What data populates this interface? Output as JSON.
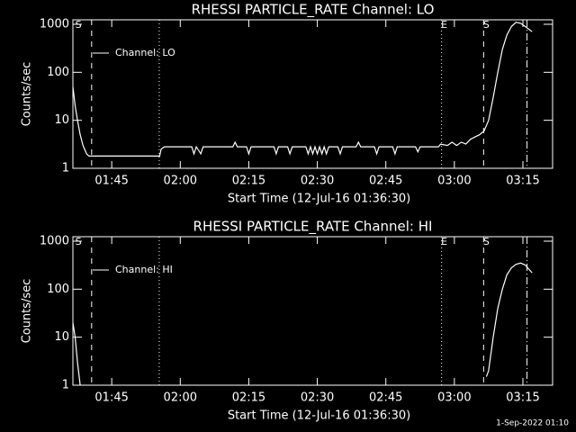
{
  "chart_data": [
    {
      "type": "line",
      "title": "RHESSI PARTICLE_RATE Channel: LO",
      "xlabel": "Start Time (12-Jul-16 01:36:30)",
      "ylabel": "Counts/sec",
      "log_y": true,
      "ylim": [
        1,
        1240
      ],
      "yticks": [
        1,
        10,
        100,
        1000
      ],
      "xlim": [
        0,
        105
      ],
      "xticks": [
        {
          "value": 8.5,
          "label": "01:45"
        },
        {
          "value": 23.5,
          "label": "02:00"
        },
        {
          "value": 38.5,
          "label": "02:15"
        },
        {
          "value": 53.5,
          "label": "02:30"
        },
        {
          "value": 68.5,
          "label": "02:45"
        },
        {
          "value": 83.5,
          "label": "03:00"
        },
        {
          "value": 98.5,
          "label": "03:15"
        }
      ],
      "legend": "upper left",
      "markers": [
        {
          "x": 4.1,
          "style": "dashed"
        },
        {
          "x": 18.9,
          "style": "dotted"
        },
        {
          "x": 80.7,
          "style": "dotted",
          "label": "E"
        },
        {
          "x": 89.9,
          "style": "dashed",
          "label": "S"
        },
        {
          "x": 99.4,
          "style": "dashdot"
        }
      ],
      "annotations": [
        {
          "x": 0.8,
          "text": "S"
        }
      ],
      "series": [
        {
          "name": "Channel: LO",
          "color": "#ffffff",
          "x": [
            0,
            0.5,
            1,
            1.6,
            2.2,
            3,
            3.5,
            19,
            19.3,
            20,
            26,
            26.5,
            27,
            28,
            28.5,
            35,
            35.5,
            36,
            38,
            38.5,
            39,
            44,
            44.5,
            45,
            47,
            47.5,
            48,
            51,
            51.5,
            52,
            52.5,
            53,
            53.5,
            54,
            54.5,
            55,
            55.5,
            56,
            58,
            58.5,
            59,
            62,
            62.5,
            63,
            66,
            66.5,
            67,
            70,
            70.5,
            71,
            75,
            75.5,
            76,
            80,
            80.5,
            82,
            83,
            84,
            85,
            86,
            87,
            88,
            89,
            90,
            91,
            92,
            93,
            94,
            95,
            96,
            97,
            98,
            99,
            100.5
          ],
          "values": [
            50,
            20,
            10,
            5,
            3,
            2,
            1.8,
            1.8,
            2.5,
            2.8,
            2.8,
            2,
            2.8,
            2,
            2.8,
            2.8,
            3.5,
            2.8,
            2.8,
            2,
            2.8,
            2.8,
            2,
            2.8,
            2.8,
            2,
            2.8,
            2.8,
            2,
            2.8,
            2,
            2.8,
            2,
            2.8,
            2,
            2.8,
            2,
            2.8,
            2.8,
            2,
            2.8,
            2.8,
            3.5,
            2.8,
            2.8,
            2,
            2.8,
            2.8,
            2,
            2.8,
            2.8,
            2.2,
            2.8,
            2.8,
            3.2,
            3,
            3.5,
            3,
            3.5,
            3.2,
            4,
            4.5,
            5,
            6,
            10,
            30,
            100,
            300,
            600,
            900,
            1100,
            1050,
            900,
            700
          ]
        }
      ]
    },
    {
      "type": "line",
      "title": "RHESSI PARTICLE_RATE Channel: HI",
      "xlabel": "Start Time (12-Jul-16 01:36:30)",
      "ylabel": "Counts/sec",
      "log_y": true,
      "ylim": [
        1,
        1240
      ],
      "yticks": [
        1,
        10,
        100,
        1000
      ],
      "xlim": [
        0,
        105
      ],
      "xticks": [
        {
          "value": 8.5,
          "label": "01:45"
        },
        {
          "value": 23.5,
          "label": "02:00"
        },
        {
          "value": 38.5,
          "label": "02:15"
        },
        {
          "value": 53.5,
          "label": "02:30"
        },
        {
          "value": 68.5,
          "label": "02:45"
        },
        {
          "value": 83.5,
          "label": "03:00"
        },
        {
          "value": 98.5,
          "label": "03:15"
        }
      ],
      "legend": "upper left",
      "markers": [
        {
          "x": 4.1,
          "style": "dashed"
        },
        {
          "x": 18.9,
          "style": "dotted"
        },
        {
          "x": 80.7,
          "style": "dotted",
          "label": "E"
        },
        {
          "x": 89.9,
          "style": "dashed",
          "label": "S"
        },
        {
          "x": 99.4,
          "style": "dashdot"
        }
      ],
      "annotations": [
        {
          "x": 0.8,
          "text": "S"
        }
      ],
      "series": [
        {
          "name": "Channel: HI",
          "color": "#ffffff",
          "x": [
            0,
            0.5,
            1,
            1.6,
            5,
            90.5,
            91,
            92,
            93,
            94,
            95,
            96,
            97,
            98,
            99,
            100.5
          ],
          "values": [
            20,
            10,
            3,
            1,
            null,
            1.5,
            2,
            10,
            40,
            100,
            200,
            280,
            330,
            350,
            320,
            220
          ]
        }
      ]
    }
  ],
  "footer": "1-Sep-2022 01:10"
}
